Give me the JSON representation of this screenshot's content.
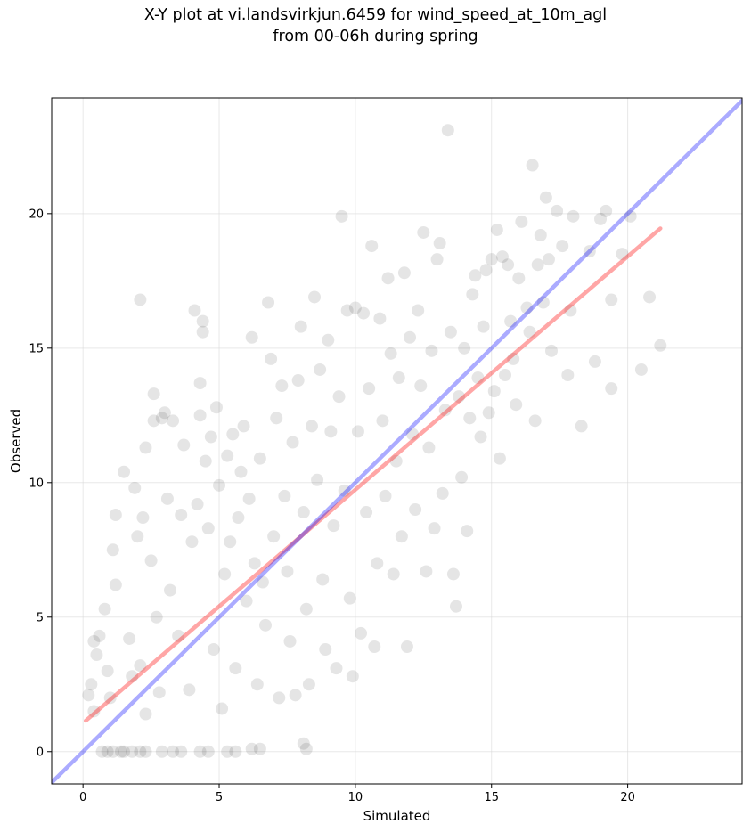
{
  "chart_data": {
    "type": "scatter",
    "title_lines": [
      "X-Y plot at vi.landsvirkjun.6459 for wind_speed_at_10m_agl",
      "from 00-06h during spring"
    ],
    "xlabel": "Simulated",
    "ylabel": "Observed",
    "xlim": [
      -1.15,
      24.2
    ],
    "ylim": [
      -1.2,
      24.3
    ],
    "xticks": [
      0,
      5,
      10,
      15,
      20
    ],
    "yticks": [
      0,
      5,
      10,
      15,
      20
    ],
    "grid": true,
    "series": [
      {
        "role": "observations",
        "color": "#000000",
        "opacity": 0.1,
        "points": [
          [
            0.7,
            0
          ],
          [
            0.9,
            0
          ],
          [
            1.1,
            0
          ],
          [
            1.4,
            0
          ],
          [
            1.5,
            0
          ],
          [
            1.8,
            0
          ],
          [
            2.1,
            0
          ],
          [
            2.3,
            0
          ],
          [
            2.9,
            0
          ],
          [
            3.3,
            0
          ],
          [
            3.6,
            0
          ],
          [
            4.3,
            0
          ],
          [
            4.6,
            0
          ],
          [
            5.3,
            0
          ],
          [
            5.6,
            0
          ],
          [
            6.2,
            0.1
          ],
          [
            6.5,
            0.1
          ],
          [
            8.1,
            0.3
          ],
          [
            8.2,
            0.1
          ],
          [
            0.2,
            2.1
          ],
          [
            0.3,
            2.5
          ],
          [
            0.4,
            1.5
          ],
          [
            0.5,
            3.6
          ],
          [
            0.4,
            4.1
          ],
          [
            0.6,
            4.3
          ],
          [
            0.8,
            5.3
          ],
          [
            0.9,
            3.0
          ],
          [
            1.0,
            2.0
          ],
          [
            1.1,
            7.5
          ],
          [
            1.2,
            6.2
          ],
          [
            1.2,
            8.8
          ],
          [
            1.5,
            10.4
          ],
          [
            1.7,
            4.2
          ],
          [
            1.8,
            2.8
          ],
          [
            1.9,
            9.8
          ],
          [
            2.0,
            8.0
          ],
          [
            2.1,
            16.8
          ],
          [
            2.1,
            3.2
          ],
          [
            2.2,
            8.7
          ],
          [
            2.3,
            1.4
          ],
          [
            2.3,
            11.3
          ],
          [
            2.5,
            7.1
          ],
          [
            2.6,
            12.3
          ],
          [
            2.6,
            13.3
          ],
          [
            2.7,
            5.0
          ],
          [
            2.8,
            2.2
          ],
          [
            2.9,
            12.4
          ],
          [
            3.0,
            12.6
          ],
          [
            3.1,
            9.4
          ],
          [
            3.3,
            12.3
          ],
          [
            3.2,
            6.0
          ],
          [
            3.5,
            4.3
          ],
          [
            3.6,
            8.8
          ],
          [
            3.7,
            11.4
          ],
          [
            3.9,
            2.3
          ],
          [
            4.0,
            7.8
          ],
          [
            4.1,
            16.4
          ],
          [
            4.2,
            9.2
          ],
          [
            4.3,
            12.5
          ],
          [
            4.4,
            15.6
          ],
          [
            4.4,
            16.0
          ],
          [
            4.3,
            13.7
          ],
          [
            4.5,
            10.8
          ],
          [
            4.6,
            8.3
          ],
          [
            4.7,
            11.7
          ],
          [
            4.8,
            3.8
          ],
          [
            4.9,
            12.8
          ],
          [
            5.0,
            9.9
          ],
          [
            5.1,
            1.6
          ],
          [
            5.2,
            6.6
          ],
          [
            5.3,
            11.0
          ],
          [
            5.4,
            7.8
          ],
          [
            5.5,
            11.8
          ],
          [
            5.6,
            3.1
          ],
          [
            5.7,
            8.7
          ],
          [
            5.8,
            10.4
          ],
          [
            5.9,
            12.1
          ],
          [
            6.0,
            5.6
          ],
          [
            6.1,
            9.4
          ],
          [
            6.2,
            15.4
          ],
          [
            6.3,
            7.0
          ],
          [
            6.4,
            2.5
          ],
          [
            6.5,
            10.9
          ],
          [
            6.6,
            6.3
          ],
          [
            6.7,
            4.7
          ],
          [
            6.8,
            16.7
          ],
          [
            6.9,
            14.6
          ],
          [
            7.0,
            8.0
          ],
          [
            7.1,
            12.4
          ],
          [
            7.2,
            2.0
          ],
          [
            7.3,
            13.6
          ],
          [
            7.4,
            9.5
          ],
          [
            7.5,
            6.7
          ],
          [
            7.6,
            4.1
          ],
          [
            7.7,
            11.5
          ],
          [
            7.8,
            2.1
          ],
          [
            7.9,
            13.8
          ],
          [
            8.0,
            15.8
          ],
          [
            8.1,
            8.9
          ],
          [
            8.2,
            5.3
          ],
          [
            8.3,
            2.5
          ],
          [
            8.4,
            12.1
          ],
          [
            8.5,
            16.9
          ],
          [
            8.6,
            10.1
          ],
          [
            8.7,
            14.2
          ],
          [
            8.8,
            6.4
          ],
          [
            8.9,
            3.8
          ],
          [
            9.0,
            15.3
          ],
          [
            9.1,
            11.9
          ],
          [
            9.2,
            8.4
          ],
          [
            9.3,
            3.1
          ],
          [
            9.4,
            13.2
          ],
          [
            9.5,
            19.9
          ],
          [
            9.6,
            9.7
          ],
          [
            9.7,
            16.4
          ],
          [
            9.8,
            5.7
          ],
          [
            9.9,
            2.8
          ],
          [
            10.0,
            16.5
          ],
          [
            10.1,
            11.9
          ],
          [
            10.2,
            4.4
          ],
          [
            10.3,
            16.3
          ],
          [
            10.4,
            8.9
          ],
          [
            10.5,
            13.5
          ],
          [
            10.6,
            18.8
          ],
          [
            10.7,
            3.9
          ],
          [
            10.8,
            7.0
          ],
          [
            10.9,
            16.1
          ],
          [
            11.0,
            12.3
          ],
          [
            11.1,
            9.5
          ],
          [
            11.2,
            17.6
          ],
          [
            11.3,
            14.8
          ],
          [
            11.4,
            6.6
          ],
          [
            11.5,
            10.8
          ],
          [
            11.6,
            13.9
          ],
          [
            11.7,
            8.0
          ],
          [
            11.8,
            17.8
          ],
          [
            11.9,
            3.9
          ],
          [
            12.0,
            15.4
          ],
          [
            12.1,
            11.8
          ],
          [
            12.2,
            9.0
          ],
          [
            12.3,
            16.4
          ],
          [
            12.4,
            13.6
          ],
          [
            12.5,
            19.3
          ],
          [
            12.6,
            6.7
          ],
          [
            12.7,
            11.3
          ],
          [
            12.8,
            14.9
          ],
          [
            12.9,
            8.3
          ],
          [
            13.0,
            18.3
          ],
          [
            13.1,
            18.9
          ],
          [
            13.2,
            9.6
          ],
          [
            13.3,
            12.7
          ],
          [
            13.4,
            23.1
          ],
          [
            13.5,
            15.6
          ],
          [
            13.6,
            6.6
          ],
          [
            13.7,
            5.4
          ],
          [
            13.8,
            13.2
          ],
          [
            13.9,
            10.2
          ],
          [
            14.0,
            15.0
          ],
          [
            14.1,
            8.2
          ],
          [
            14.2,
            12.4
          ],
          [
            14.3,
            17.0
          ],
          [
            14.4,
            17.7
          ],
          [
            14.5,
            13.9
          ],
          [
            14.6,
            11.7
          ],
          [
            14.7,
            15.8
          ],
          [
            14.8,
            17.9
          ],
          [
            14.9,
            12.6
          ],
          [
            15.0,
            18.3
          ],
          [
            15.1,
            13.4
          ],
          [
            15.2,
            19.4
          ],
          [
            15.3,
            10.9
          ],
          [
            15.4,
            18.4
          ],
          [
            15.5,
            14.0
          ],
          [
            15.6,
            18.1
          ],
          [
            15.7,
            16.0
          ],
          [
            15.8,
            14.6
          ],
          [
            15.9,
            12.9
          ],
          [
            16.0,
            17.6
          ],
          [
            16.1,
            19.7
          ],
          [
            16.3,
            16.5
          ],
          [
            16.4,
            15.6
          ],
          [
            16.5,
            21.8
          ],
          [
            16.6,
            12.3
          ],
          [
            16.7,
            18.1
          ],
          [
            16.8,
            19.2
          ],
          [
            16.9,
            16.7
          ],
          [
            17.0,
            20.6
          ],
          [
            17.1,
            18.3
          ],
          [
            17.2,
            14.9
          ],
          [
            17.4,
            20.1
          ],
          [
            17.6,
            18.8
          ],
          [
            17.8,
            14.0
          ],
          [
            17.9,
            16.4
          ],
          [
            18.0,
            19.9
          ],
          [
            18.3,
            12.1
          ],
          [
            18.6,
            18.6
          ],
          [
            18.8,
            14.5
          ],
          [
            19.0,
            19.8
          ],
          [
            19.2,
            20.1
          ],
          [
            19.4,
            16.8
          ],
          [
            19.4,
            13.5
          ],
          [
            19.8,
            18.5
          ],
          [
            20.1,
            19.9
          ],
          [
            20.5,
            14.2
          ],
          [
            20.8,
            16.9
          ],
          [
            21.2,
            15.1
          ]
        ]
      },
      {
        "role": "regression-line",
        "color": "#ff0000",
        "opacity": 0.35,
        "line": [
          [
            0.1,
            1.15
          ],
          [
            21.2,
            19.45
          ]
        ]
      },
      {
        "role": "one-to-one-line",
        "color": "#0000ff",
        "opacity": 0.33,
        "line": [
          [
            -1.15,
            -1.15
          ],
          [
            24.2,
            24.2
          ]
        ]
      }
    ]
  }
}
